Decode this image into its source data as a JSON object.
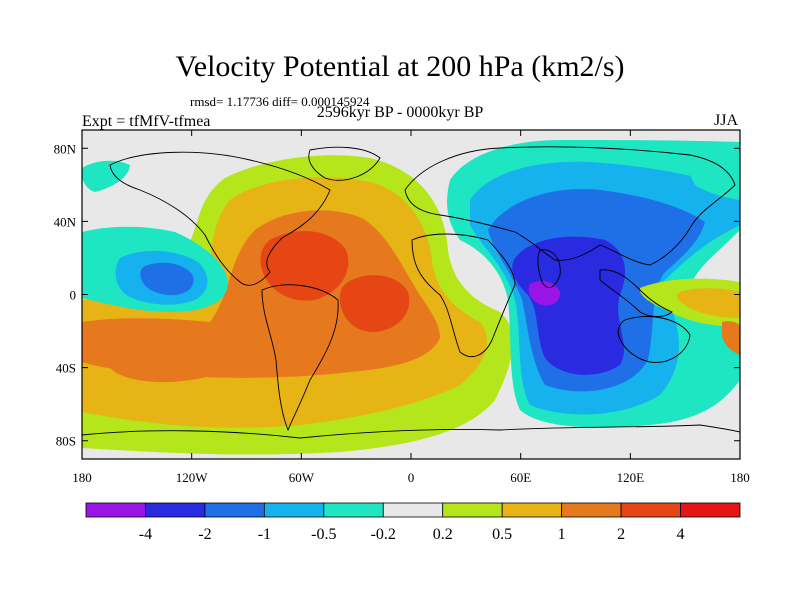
{
  "header": {
    "title": "Velocity Potential at 200 hPa (km2/s)",
    "stats": "rmsd= 1.17736 diff= 0.000145924",
    "period": "2596kyr BP - 0000kyr BP",
    "expt": "Expt = tfMfV-tfmea",
    "season": "JJA"
  },
  "chart_data": {
    "type": "heatmap",
    "title": "Velocity Potential at 200 hPa (km2/s)",
    "subtitle": "2596kyr BP - 0000kyr BP",
    "xlabel": "",
    "ylabel": "",
    "x_ticks": [
      "180",
      "120W",
      "60W",
      "0",
      "60E",
      "120E",
      "180"
    ],
    "y_ticks": [
      "80N",
      "40N",
      "0",
      "40S",
      "80S"
    ],
    "xlim": [
      -180,
      180
    ],
    "ylim": [
      -90,
      90
    ],
    "colorbar": {
      "labels": [
        "-4",
        "-2",
        "-1",
        "-0.5",
        "-0.2",
        "0.2",
        "0.5",
        "1",
        "2",
        "4"
      ],
      "colors": [
        "#9b14e6",
        "#2a2ae0",
        "#1f6fe6",
        "#15b2ee",
        "#1fe6c2",
        "#e8e8e8",
        "#b5e61c",
        "#e6b414",
        "#e6781e",
        "#e64614",
        "#e61414"
      ]
    },
    "features": [
      {
        "name": "strong negative (-2 to -4) over Indian Ocean / S Asia",
        "lon": 78,
        "lat": 5,
        "level": "-4"
      },
      {
        "name": "negative over Africa / Asia / Indian Ocean",
        "lon": 80,
        "lat": 10,
        "level": "-2"
      },
      {
        "name": "negative over eastern Pacific",
        "lon": -150,
        "lat": 10,
        "level": "-1"
      },
      {
        "name": "positive over Atlantic / Americas",
        "lon": -50,
        "lat": 15,
        "level": "2"
      },
      {
        "name": "positive maximum over equatorial Atlantic",
        "lon": -20,
        "lat": 0,
        "level": "4"
      },
      {
        "name": "positive over South Pacific",
        "lon": -130,
        "lat": -30,
        "level": "1"
      }
    ]
  }
}
